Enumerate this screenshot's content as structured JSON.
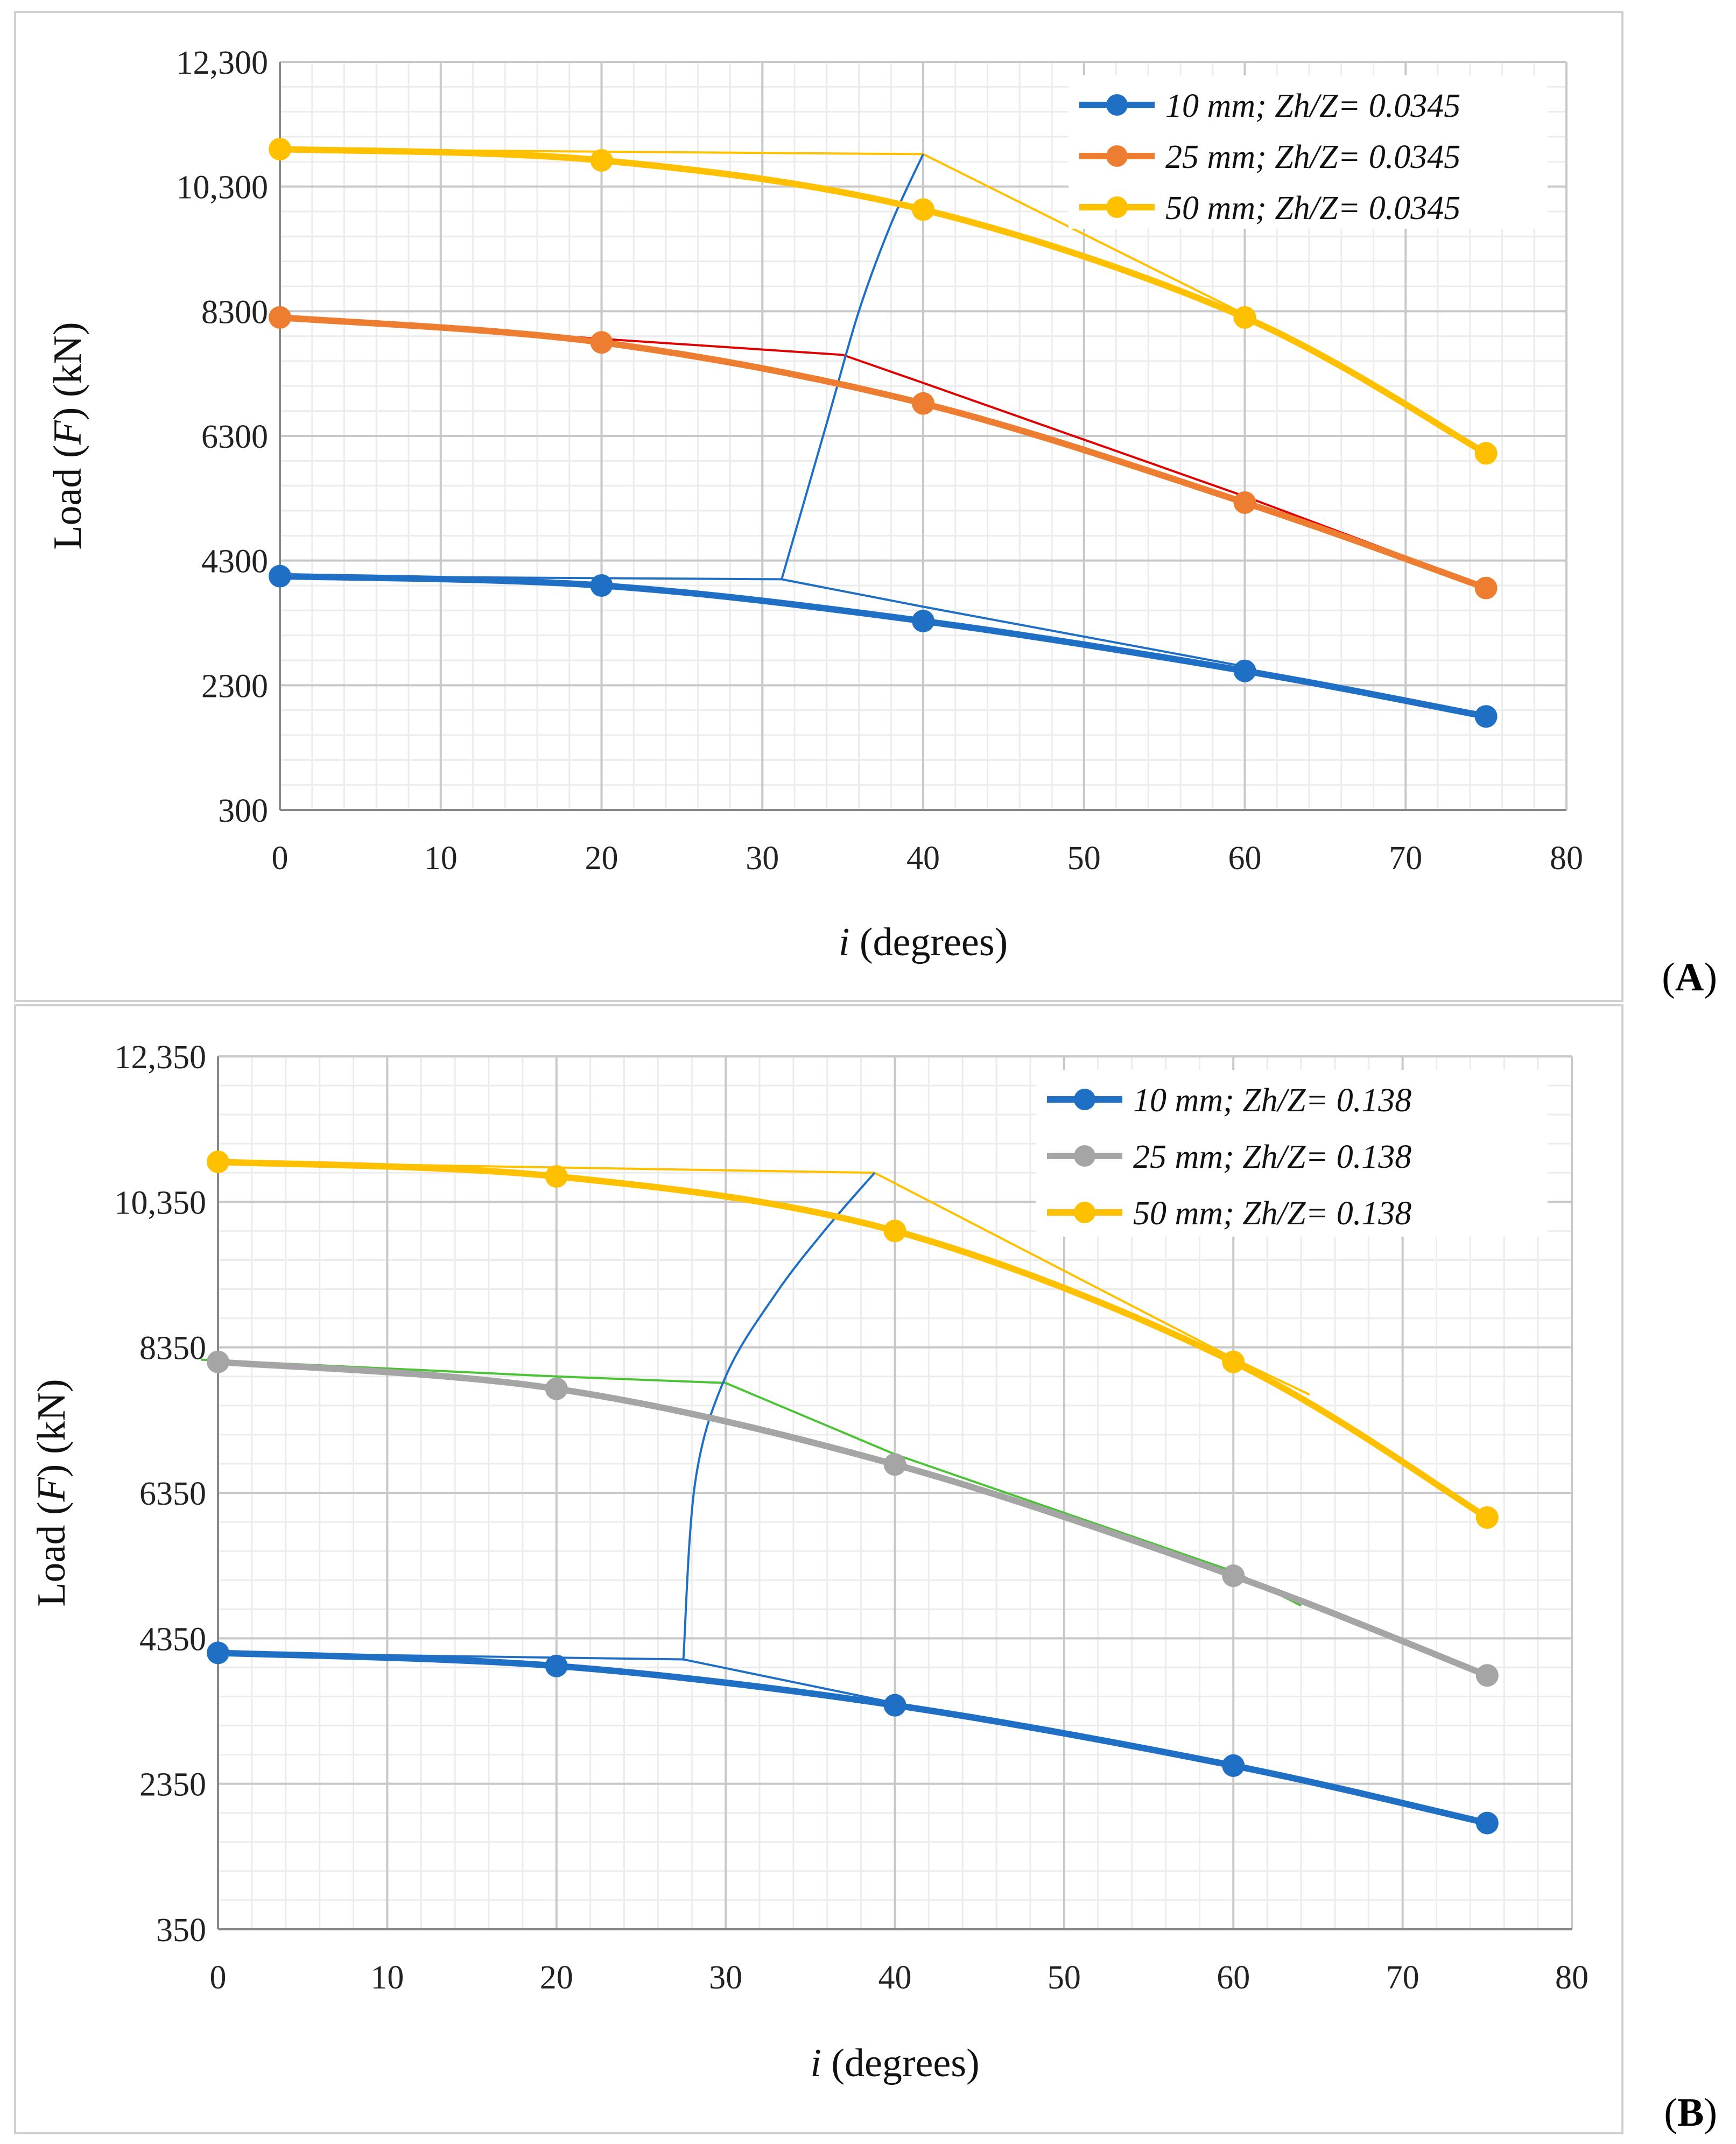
{
  "chart_data": [
    {
      "type": "line",
      "panel_label": "A",
      "xlabel": {
        "italic": "i",
        "rest": " (degrees)"
      },
      "ylabel": {
        "pre": "Load (",
        "italic": "F",
        "post": ") (kN)"
      },
      "xlim": [
        0,
        80
      ],
      "ylim": [
        300,
        12300
      ],
      "xticks": [
        0,
        10,
        20,
        30,
        40,
        50,
        60,
        70,
        80
      ],
      "yticks": [
        300,
        2300,
        4300,
        6300,
        8300,
        10300,
        12300
      ],
      "ytick_labels": [
        "300",
        "2300",
        "4300",
        "6300",
        "8300",
        "10,300",
        "12,300"
      ],
      "grid": true,
      "legend_position": "top-right",
      "series": [
        {
          "name": "10 mm; Zh/Z= 0.0345",
          "color": "#1f6fc5",
          "x": [
            0,
            20,
            40,
            60,
            75
          ],
          "y": [
            4050,
            3900,
            3330,
            2530,
            1800
          ]
        },
        {
          "name": "25 mm; Zh/Z= 0.0345",
          "color": "#ed7d31",
          "x": [
            0,
            20,
            40,
            60,
            75
          ],
          "y": [
            8200,
            7800,
            6820,
            5230,
            3860
          ]
        },
        {
          "name": "50 mm; Zh/Z= 0.0345",
          "color": "#ffc000",
          "x": [
            0,
            20,
            40,
            60,
            75
          ],
          "y": [
            10900,
            10720,
            9930,
            8200,
            6020
          ]
        }
      ],
      "overlay_lines": [
        {
          "color": "#1f6fc5",
          "x": [
            0,
            31.2,
            40,
            60
          ],
          "y": [
            4050,
            4000,
            3560,
            2600
          ]
        },
        {
          "color": "#e00000",
          "x": [
            0,
            35,
            40,
            60,
            75
          ],
          "y": [
            8200,
            7600,
            7150,
            5330,
            3880
          ]
        },
        {
          "color": "#ffc000",
          "x": [
            0,
            40,
            60
          ],
          "y": [
            10900,
            10820,
            8250
          ]
        },
        {
          "color": "#1f6fc5",
          "curve": true,
          "x": [
            31.2,
            34,
            36,
            38,
            40
          ],
          "y": [
            4000,
            6500,
            8300,
            9700,
            10820
          ]
        }
      ]
    },
    {
      "type": "line",
      "panel_label": "B",
      "xlabel": {
        "italic": "i",
        "rest": " (degrees)"
      },
      "ylabel": {
        "pre": "Load (",
        "italic": "F",
        "post": ") (kN)"
      },
      "xlim": [
        0,
        80
      ],
      "ylim": [
        350,
        12350
      ],
      "xticks": [
        0,
        10,
        20,
        30,
        40,
        50,
        60,
        70,
        80
      ],
      "yticks": [
        350,
        2350,
        4350,
        6350,
        8350,
        10350,
        12350
      ],
      "ytick_labels": [
        "350",
        "2350",
        "4350",
        "6350",
        "8350",
        "10,350",
        "12,350"
      ],
      "grid": true,
      "legend_position": "top-right",
      "series": [
        {
          "name": "10 mm; Zh/Z= 0.138",
          "color": "#1f6fc5",
          "x": [
            0,
            20,
            40,
            60,
            75
          ],
          "y": [
            4150,
            3970,
            3430,
            2600,
            1810
          ]
        },
        {
          "name": "25 mm; Zh/Z= 0.138",
          "color": "#a5a5a5",
          "x": [
            0,
            20,
            40,
            60,
            75
          ],
          "y": [
            8150,
            7780,
            6740,
            5210,
            3840
          ]
        },
        {
          "name": "50 mm; Zh/Z= 0.138",
          "color": "#ffc000",
          "x": [
            0,
            20,
            40,
            60,
            75
          ],
          "y": [
            10900,
            10700,
            9950,
            8150,
            6010
          ]
        }
      ],
      "overlay_lines": [
        {
          "color": "#1f6fc5",
          "x": [
            0,
            27.5,
            40
          ],
          "y": [
            4150,
            4060,
            3460
          ]
        },
        {
          "color": "#4cc236",
          "x": [
            -1,
            20,
            30,
            40,
            60,
            64
          ],
          "y": [
            8180,
            7950,
            7860,
            6880,
            5270,
            4800
          ]
        },
        {
          "color": "#ffc000",
          "x": [
            0,
            38.8,
            60,
            64.5
          ],
          "y": [
            10900,
            10750,
            8200,
            7700
          ]
        },
        {
          "color": "#1f6fc5",
          "curve": true,
          "x": [
            27.5,
            28.2,
            30,
            33,
            36,
            38.8
          ],
          "y": [
            4060,
            6500,
            7950,
            9100,
            10000,
            10750
          ]
        }
      ]
    }
  ]
}
